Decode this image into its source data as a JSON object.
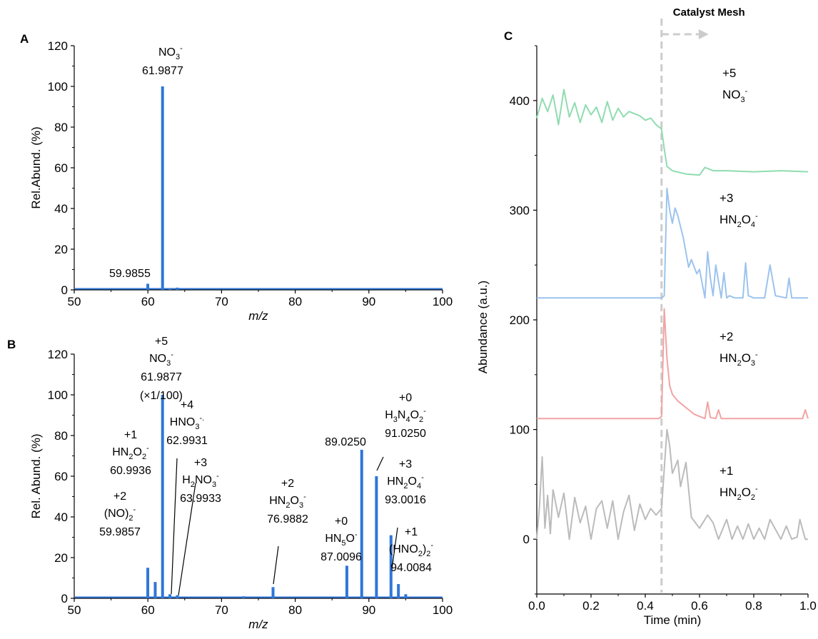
{
  "colors": {
    "blue": "#2f76d8",
    "green": "#8fdcb0",
    "lightblue": "#9cc3ee",
    "pink": "#f2a3a3",
    "gray": "#bbbbbb",
    "divider": "#cccccc"
  },
  "chart_data": [
    {
      "panel": "A",
      "type": "bar",
      "xlabel": "m/z",
      "ylabel": "Rel.Abund. (%)",
      "xlim": [
        50,
        100
      ],
      "ylim": [
        0,
        120
      ],
      "xticks": [
        "50",
        "60",
        "70",
        "80",
        "90",
        "100"
      ],
      "yticks": [
        "0",
        "20",
        "40",
        "60",
        "80",
        "100",
        "120"
      ],
      "peaks": [
        {
          "x": 59.9855,
          "y": 3
        },
        {
          "x": 61.9877,
          "y": 100
        },
        {
          "x": 62.99,
          "y": 0.6
        },
        {
          "x": 63.99,
          "y": 1.1
        }
      ],
      "annotations": [
        {
          "formula": [
            "NO",
            "3",
            "-"
          ],
          "value": "61.9877"
        },
        {
          "formula": [],
          "value": "59.9855"
        }
      ]
    },
    {
      "panel": "B",
      "type": "bar",
      "xlabel": "m/z",
      "ylabel": "Rel. Abund. (%)",
      "xlim": [
        50,
        100
      ],
      "ylim": [
        0,
        120
      ],
      "xticks": [
        "50",
        "60",
        "70",
        "80",
        "90",
        "100"
      ],
      "yticks": [
        "0",
        "20",
        "40",
        "60",
        "80",
        "100",
        "120"
      ],
      "peaks": [
        {
          "x": 59.9857,
          "y": 15
        },
        {
          "x": 60.9936,
          "y": 8
        },
        {
          "x": 61.9877,
          "y": 100
        },
        {
          "x": 62.9931,
          "y": 2
        },
        {
          "x": 63.9933,
          "y": 1.5
        },
        {
          "x": 73,
          "y": 1
        },
        {
          "x": 76.9882,
          "y": 5.5
        },
        {
          "x": 87.0096,
          "y": 16
        },
        {
          "x": 89.025,
          "y": 73
        },
        {
          "x": 91.025,
          "y": 60
        },
        {
          "x": 93.0016,
          "y": 31
        },
        {
          "x": 94.0084,
          "y": 7
        },
        {
          "x": 95,
          "y": 2
        }
      ],
      "annotations": [
        {
          "state": "+5",
          "formula": [
            "NO",
            "3",
            "-"
          ],
          "value": "61.9877",
          "extra": "(×1/100)"
        },
        {
          "state": "+4",
          "formula": [
            "HNO",
            "3",
            "-",
            "."
          ],
          "value": "62.9931"
        },
        {
          "state": "+1",
          "formula": [
            "HN",
            "2",
            "O",
            "2",
            "-"
          ],
          "value": "60.9936"
        },
        {
          "state": "+3",
          "formula": [
            "H",
            "2",
            "NO",
            "3",
            "-"
          ],
          "value": "63.9933"
        },
        {
          "state": "+2",
          "formula": [
            "(NO)",
            "2",
            "-"
          ],
          "value": "59.9857"
        },
        {
          "state": "+2",
          "formula": [
            "HN",
            "2",
            "O",
            "3",
            "-"
          ],
          "value": "76.9882"
        },
        {
          "state": "+0",
          "formula": [
            "HN",
            "5",
            "O",
            "-"
          ],
          "value": "87.0096"
        },
        {
          "state": "",
          "formula": [],
          "value": "89.0250"
        },
        {
          "state": "+0",
          "formula": [
            "H",
            "3",
            "N",
            "4",
            "O",
            "2",
            "-"
          ],
          "value": "91.0250"
        },
        {
          "state": "+3",
          "formula": [
            "HN",
            "2",
            "O",
            "4",
            "-"
          ],
          "value": "93.0016"
        },
        {
          "state": "+1",
          "formula": [
            "(HNO",
            "2",
            ")",
            "2",
            "-"
          ],
          "value": "94.0084"
        }
      ]
    },
    {
      "panel": "C",
      "type": "line",
      "xlabel": "Time (min)",
      "ylabel": "Abundance (a.u.)",
      "xlim": [
        0,
        1.0
      ],
      "ylim": [
        -50,
        450
      ],
      "xticks": [
        "0.0",
        "0.2",
        "0.4",
        "0.6",
        "0.8",
        "1.0"
      ],
      "yticks": [
        "0",
        "100",
        "200",
        "300",
        "400"
      ],
      "marker_x": 0.46,
      "marker_label": "Catalyst Mesh",
      "series": [
        {
          "name": "+5 NO3-",
          "state": "+5",
          "formula": [
            "NO",
            "3",
            "-"
          ],
          "color": "#8fdcb0",
          "x": [
            0,
            0.02,
            0.04,
            0.06,
            0.08,
            0.1,
            0.12,
            0.14,
            0.16,
            0.18,
            0.2,
            0.22,
            0.24,
            0.26,
            0.28,
            0.3,
            0.32,
            0.34,
            0.36,
            0.38,
            0.4,
            0.42,
            0.44,
            0.46,
            0.47,
            0.48,
            0.5,
            0.55,
            0.6,
            0.62,
            0.65,
            0.7,
            0.8,
            0.9,
            1.0
          ],
          "y": [
            384,
            402,
            390,
            405,
            378,
            410,
            385,
            398,
            380,
            396,
            387,
            394,
            380,
            399,
            382,
            393,
            385,
            390,
            388,
            386,
            382,
            384,
            378,
            374,
            356,
            340,
            336,
            333,
            332,
            339,
            336,
            336,
            335,
            336,
            335
          ]
        },
        {
          "name": "+3 HN2O4-",
          "state": "+3",
          "formula": [
            "HN",
            "2",
            "O",
            "4",
            "-"
          ],
          "color": "#9cc3ee",
          "x": [
            0,
            0.46,
            0.47,
            0.48,
            0.49,
            0.5,
            0.51,
            0.52,
            0.54,
            0.56,
            0.57,
            0.59,
            0.6,
            0.61,
            0.62,
            0.63,
            0.64,
            0.65,
            0.66,
            0.68,
            0.69,
            0.7,
            0.71,
            0.73,
            0.76,
            0.77,
            0.78,
            0.8,
            0.84,
            0.86,
            0.88,
            0.92,
            0.93,
            0.94,
            1.0
          ],
          "y": [
            220,
            220,
            222,
            320,
            300,
            288,
            302,
            295,
            275,
            248,
            255,
            242,
            246,
            233,
            220,
            262,
            238,
            222,
            250,
            220,
            243,
            220,
            222,
            220,
            220,
            252,
            222,
            220,
            220,
            250,
            222,
            220,
            238,
            220,
            220
          ]
        },
        {
          "name": "+2 HN2O3-",
          "state": "+2",
          "formula": [
            "HN",
            "2",
            "O",
            "3",
            "-"
          ],
          "color": "#f2a3a3",
          "x": [
            0,
            0.45,
            0.46,
            0.47,
            0.48,
            0.49,
            0.5,
            0.52,
            0.55,
            0.58,
            0.6,
            0.62,
            0.63,
            0.64,
            0.66,
            0.67,
            0.68,
            0.7,
            0.9,
            0.98,
            0.99,
            1.0
          ],
          "y": [
            110,
            110,
            112,
            210,
            165,
            140,
            132,
            126,
            120,
            114,
            112,
            110,
            125,
            111,
            110,
            118,
            110,
            110,
            110,
            110,
            118,
            110
          ]
        },
        {
          "name": "+1 HN2O2-",
          "state": "+1",
          "formula": [
            "HN",
            "2",
            "O",
            "2",
            "-"
          ],
          "color": "#bbbbbb",
          "x": [
            0,
            0.01,
            0.02,
            0.03,
            0.04,
            0.05,
            0.06,
            0.08,
            0.1,
            0.12,
            0.14,
            0.16,
            0.18,
            0.2,
            0.22,
            0.24,
            0.26,
            0.28,
            0.3,
            0.32,
            0.34,
            0.36,
            0.38,
            0.4,
            0.42,
            0.44,
            0.46,
            0.48,
            0.49,
            0.5,
            0.52,
            0.53,
            0.55,
            0.57,
            0.6,
            0.63,
            0.65,
            0.67,
            0.7,
            0.72,
            0.74,
            0.76,
            0.78,
            0.8,
            0.82,
            0.84,
            0.86,
            0.9,
            0.92,
            0.94,
            0.96,
            0.97,
            0.99,
            1.0
          ],
          "y": [
            0,
            30,
            75,
            10,
            40,
            5,
            45,
            20,
            42,
            0,
            38,
            15,
            30,
            0,
            28,
            35,
            10,
            35,
            0,
            25,
            40,
            8,
            32,
            18,
            28,
            22,
            28,
            100,
            85,
            60,
            72,
            48,
            70,
            20,
            10,
            22,
            15,
            0,
            18,
            0,
            12,
            0,
            14,
            0,
            10,
            0,
            18,
            0,
            12,
            0,
            2,
            18,
            0,
            0
          ]
        }
      ]
    }
  ]
}
